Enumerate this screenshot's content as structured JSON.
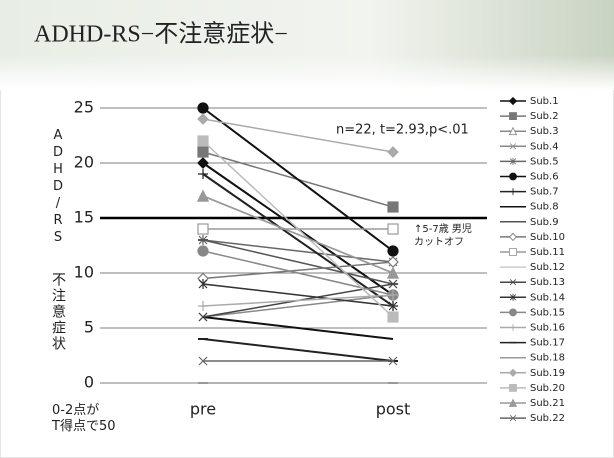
{
  "chart_data": {
    "type": "line",
    "title": "ADHD-RS−不注意症状−",
    "y_label_top": "ADHD/RS",
    "y_label_bottom": "不注意症状",
    "note": "0-2点が\nT得点で50",
    "annotation": "n=22, t=2.93,p<.01",
    "cutoff": {
      "value": 15,
      "label": "↑5-7歳 男児\nカットオフ"
    },
    "categories": [
      "pre",
      "post"
    ],
    "ylim": [
      0,
      25
    ],
    "yticks": [
      0,
      5,
      10,
      15,
      20,
      25
    ],
    "grid": true,
    "series": [
      {
        "name": "Sub.1",
        "color": "#111111",
        "marker": "diamond",
        "filled": true,
        "values": [
          20,
          8
        ]
      },
      {
        "name": "Sub.2",
        "color": "#777777",
        "marker": "square",
        "filled": true,
        "values": [
          21,
          16
        ]
      },
      {
        "name": "Sub.3",
        "color": "#888888",
        "marker": "triangle",
        "filled": false,
        "values": [
          17,
          10
        ]
      },
      {
        "name": "Sub.4",
        "color": "#888888",
        "marker": "x",
        "filled": false,
        "values": [
          6,
          8
        ]
      },
      {
        "name": "Sub.5",
        "color": "#666666",
        "marker": "star",
        "filled": false,
        "values": [
          13,
          11
        ]
      },
      {
        "name": "Sub.6",
        "color": "#111111",
        "marker": "circle",
        "filled": true,
        "values": [
          25,
          12
        ]
      },
      {
        "name": "Sub.7",
        "color": "#222222",
        "marker": "plus",
        "filled": false,
        "values": [
          19,
          7
        ]
      },
      {
        "name": "Sub.8",
        "color": "#111111",
        "marker": "none",
        "filled": false,
        "values": [
          6,
          4
        ]
      },
      {
        "name": "Sub.9",
        "color": "#555555",
        "marker": "dash",
        "filled": false,
        "values": [
          13,
          9
        ]
      },
      {
        "name": "Sub.10",
        "color": "#777777",
        "marker": "diamond",
        "filled": false,
        "values": [
          9.5,
          11
        ]
      },
      {
        "name": "Sub.11",
        "color": "#999999",
        "marker": "square",
        "filled": false,
        "values": [
          14,
          14
        ]
      },
      {
        "name": "Sub.12",
        "color": "#cccccc",
        "marker": "none",
        "filled": false,
        "values": [
          9,
          7
        ]
      },
      {
        "name": "Sub.13",
        "color": "#444444",
        "marker": "x",
        "filled": false,
        "values": [
          6,
          9
        ]
      },
      {
        "name": "Sub.14",
        "color": "#333333",
        "marker": "star",
        "filled": false,
        "values": [
          9,
          7
        ]
      },
      {
        "name": "Sub.15",
        "color": "#888888",
        "marker": "circle",
        "filled": true,
        "values": [
          12,
          8
        ]
      },
      {
        "name": "Sub.16",
        "color": "#aaaaaa",
        "marker": "plus",
        "filled": false,
        "values": [
          7,
          8
        ]
      },
      {
        "name": "Sub.17",
        "color": "#222222",
        "marker": "dash",
        "filled": false,
        "values": [
          4,
          2
        ]
      },
      {
        "name": "Sub.18",
        "color": "#999999",
        "marker": "dash",
        "filled": false,
        "values": [
          0,
          0
        ]
      },
      {
        "name": "Sub.19",
        "color": "#aaaaaa",
        "marker": "diamond",
        "filled": true,
        "values": [
          24,
          21
        ]
      },
      {
        "name": "Sub.20",
        "color": "#bbbbbb",
        "marker": "square",
        "filled": true,
        "values": [
          22,
          6
        ]
      },
      {
        "name": "Sub.21",
        "color": "#999999",
        "marker": "triangle",
        "filled": true,
        "values": [
          17,
          10
        ]
      },
      {
        "name": "Sub.22",
        "color": "#666666",
        "marker": "x",
        "filled": false,
        "values": [
          2,
          2
        ]
      }
    ]
  }
}
